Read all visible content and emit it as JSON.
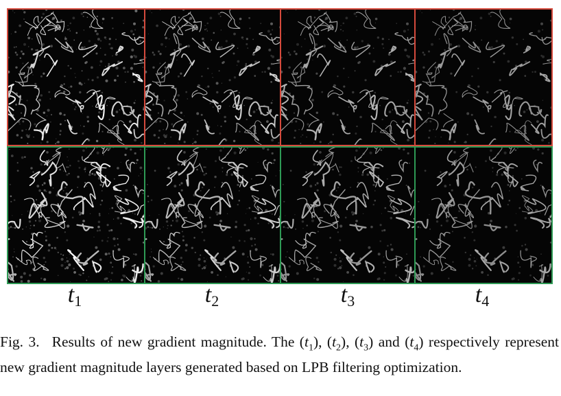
{
  "figure": {
    "rows": [
      {
        "name": "top-row",
        "border_color": "#d64a3c"
      },
      {
        "name": "bottom-row",
        "border_color": "#2e9a55"
      }
    ],
    "columns": [
      {
        "label_base": "t",
        "label_sub": "1",
        "edge_strength": 1.0
      },
      {
        "label_base": "t",
        "label_sub": "2",
        "edge_strength": 0.75
      },
      {
        "label_base": "t",
        "label_sub": "3",
        "edge_strength": 0.55
      },
      {
        "label_base": "t",
        "label_sub": "4",
        "edge_strength": 0.42
      }
    ]
  },
  "caption": {
    "fig_label": "Fig. 3.",
    "text_start": "Results of new gradient magnitude. The (",
    "t1": "t",
    "t1_sub": "1",
    "sep1": "), (",
    "t2": "t",
    "t2_sub": "2",
    "sep2": "), (",
    "t3": "t",
    "t3_sub": "3",
    "sep3": ") and (",
    "t4": "t",
    "t4_sub": "4",
    "text_end": ") respectively represent new gradient magnitude layers generated based on LPB filtering optimization."
  }
}
